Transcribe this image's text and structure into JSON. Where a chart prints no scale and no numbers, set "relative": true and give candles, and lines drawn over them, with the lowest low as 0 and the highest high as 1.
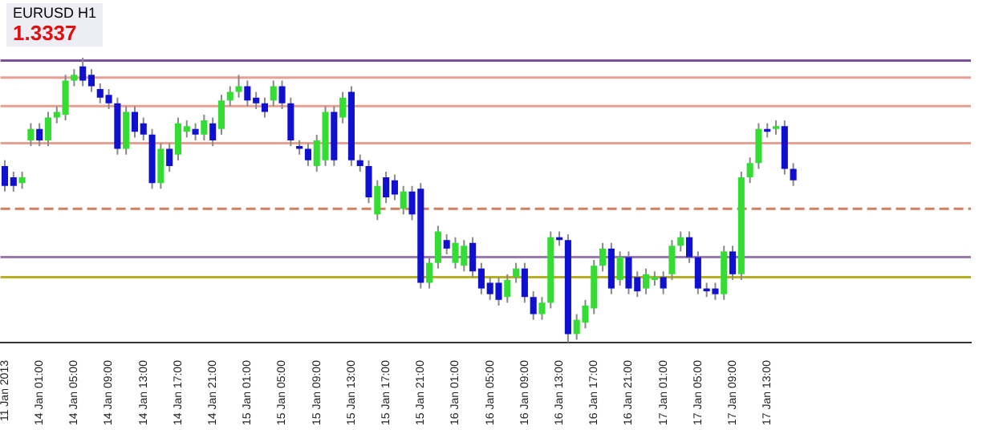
{
  "chart_data": {
    "type": "candlestick",
    "title": "EURUSD H1",
    "relative": true,
    "legend": false,
    "tick_labels": "x",
    "annotations": [
      "1.3337"
    ],
    "categories": [
      "11 Jan 2013",
      null,
      null,
      null,
      "14 Jan 01:00",
      null,
      null,
      null,
      "14 Jan 05:00",
      null,
      null,
      null,
      "14 Jan 09:00",
      null,
      null,
      null,
      "14 Jan 13:00",
      null,
      null,
      null,
      "14 Jan 17:00",
      null,
      null,
      null,
      "14 Jan 21:00",
      null,
      null,
      null,
      "15 Jan 01:00",
      null,
      null,
      null,
      "15 Jan 05:00",
      null,
      null,
      null,
      "15 Jan 09:00",
      null,
      null,
      null,
      "15 Jan 13:00",
      null,
      null,
      null,
      "15 Jan 17:00",
      null,
      null,
      null,
      "15 Jan 21:00",
      null,
      null,
      null,
      "16 Jan 01:00",
      null,
      null,
      null,
      "16 Jan 05:00",
      null,
      null,
      null,
      "16 Jan 09:00",
      null,
      null,
      null,
      "16 Jan 13:00",
      null,
      null,
      null,
      "16 Jan 17:00",
      null,
      null,
      null,
      "16 Jan 21:00",
      null,
      null,
      null,
      "17 Jan 01:00",
      null,
      null,
      null,
      "17 Jan 05:00",
      null,
      null,
      null,
      "17 Jan 09:00",
      null,
      null,
      null,
      "17 Jan 13:00",
      null,
      null,
      null,
      null,
      null,
      null,
      null,
      null,
      null,
      null,
      null,
      null,
      null,
      null,
      null,
      null,
      null,
      null,
      null,
      null,
      null,
      null,
      null
    ],
    "colors": [
      "#1010d0",
      "#1010d0",
      "#33dd33",
      "#33dd33",
      "#1010d0",
      "#33dd33",
      "#33dd33",
      "#33dd33",
      "#33dd33",
      "#1010d0",
      "#1010d0",
      "#1010d0",
      "#1010d0",
      "#1010d0",
      "#33dd33",
      "#1010d0",
      "#1010d0",
      "#1010d0",
      "#33dd33",
      "#1010d0",
      "#33dd33",
      "#33dd33",
      "#1010d0",
      "#33dd33",
      "#1010d0",
      "#33dd33",
      "#33dd33",
      "#33dd33",
      "#1010d0",
      "#1010d0",
      "#1010d0",
      "#33dd33",
      "#1010d0",
      "#1010d0",
      "#1010d0",
      "#1010d0",
      "#33dd33",
      "#33dd33",
      "#1010d0",
      "#33dd33",
      "#1010d0",
      "#1010d0",
      "#1010d0",
      "#33dd33",
      "#1010d0",
      "#1010d0",
      "#33dd33",
      "#1010d0",
      "#1010d0",
      "#33dd33",
      "#33dd33",
      "#1010d0",
      "#33dd33",
      "#33dd33",
      "#1010d0",
      "#1010d0",
      "#1010d0",
      "#1010d0",
      "#33dd33",
      "#33dd33",
      "#1010d0",
      "#1010d0",
      "#33dd33",
      "#33dd33",
      "#1010d0",
      "#1010d0",
      "#33dd33",
      "#33dd33",
      "#33dd33",
      "#33dd33",
      "#1010d0",
      "#33dd33",
      "#1010d0",
      "#1010d0",
      "#33dd33",
      "#33dd33",
      "#1010d0",
      "#33dd33",
      "#33dd33",
      "#1010d0",
      "#1010d0",
      "#1010d0",
      "#1010d0",
      "#33dd33",
      "#1010d0",
      "#33dd33",
      "#33dd33",
      "#33dd33",
      "#1010d0",
      "#33dd33",
      "#1010d0",
      "#1010d0",
      null,
      null,
      null,
      null,
      null,
      null,
      null,
      null,
      null,
      null,
      null,
      null,
      null,
      null,
      null,
      null,
      null,
      null,
      null,
      null
    ],
    "ohlc": [
      [
        0.62,
        0.64,
        0.53,
        0.55
      ],
      [
        0.58,
        0.6,
        0.53,
        0.55
      ],
      [
        0.56,
        0.6,
        0.54,
        0.58
      ],
      [
        0.71,
        0.77,
        0.69,
        0.75
      ],
      [
        0.75,
        0.77,
        0.69,
        0.71
      ],
      [
        0.71,
        0.81,
        0.69,
        0.79
      ],
      [
        0.79,
        0.83,
        0.77,
        0.81
      ],
      [
        0.8,
        0.94,
        0.78,
        0.92
      ],
      [
        0.92,
        0.96,
        0.9,
        0.94
      ],
      [
        0.97,
        1,
        0.9,
        0.92
      ],
      [
        0.94,
        0.96,
        0.88,
        0.9
      ],
      [
        0.89,
        0.91,
        0.84,
        0.86
      ],
      [
        0.87,
        0.89,
        0.82,
        0.84
      ],
      [
        0.84,
        0.86,
        0.66,
        0.68
      ],
      [
        0.68,
        0.83,
        0.66,
        0.81
      ],
      [
        0.81,
        0.83,
        0.72,
        0.74
      ],
      [
        0.77,
        0.79,
        0.71,
        0.73
      ],
      [
        0.73,
        0.75,
        0.54,
        0.56
      ],
      [
        0.56,
        0.7,
        0.54,
        0.68
      ],
      [
        0.68,
        0.7,
        0.6,
        0.62
      ],
      [
        0.66,
        0.79,
        0.64,
        0.77
      ],
      [
        0.74,
        0.78,
        0.72,
        0.76
      ],
      [
        0.75,
        0.77,
        0.71,
        0.73
      ],
      [
        0.73,
        0.8,
        0.71,
        0.78
      ],
      [
        0.77,
        0.79,
        0.69,
        0.71
      ],
      [
        0.75,
        0.87,
        0.73,
        0.85
      ],
      [
        0.85,
        0.9,
        0.83,
        0.88
      ],
      [
        0.88,
        0.94,
        0.86,
        0.9
      ],
      [
        0.9,
        0.92,
        0.83,
        0.85
      ],
      [
        0.86,
        0.88,
        0.82,
        0.84
      ],
      [
        0.84,
        0.86,
        0.79,
        0.81
      ],
      [
        0.85,
        0.92,
        0.83,
        0.9
      ],
      [
        0.9,
        0.92,
        0.82,
        0.84
      ],
      [
        0.84,
        0.86,
        0.69,
        0.71
      ],
      [
        0.69,
        0.71,
        0.66,
        0.68
      ],
      [
        0.68,
        0.7,
        0.62,
        0.64
      ],
      [
        0.62,
        0.73,
        0.6,
        0.71
      ],
      [
        0.64,
        0.83,
        0.62,
        0.81
      ],
      [
        0.81,
        0.83,
        0.62,
        0.64
      ],
      [
        0.79,
        0.88,
        0.77,
        0.86
      ],
      [
        0.88,
        0.9,
        0.62,
        0.64
      ],
      [
        0.64,
        0.66,
        0.6,
        0.62
      ],
      [
        0.62,
        0.64,
        0.49,
        0.51
      ],
      [
        0.45,
        0.57,
        0.43,
        0.55
      ],
      [
        0.58,
        0.6,
        0.49,
        0.51
      ],
      [
        0.57,
        0.59,
        0.5,
        0.52
      ],
      [
        0.47,
        0.55,
        0.45,
        0.53
      ],
      [
        0.53,
        0.55,
        0.43,
        0.45
      ],
      [
        0.54,
        0.56,
        0.19,
        0.21
      ],
      [
        0.21,
        0.3,
        0.19,
        0.28
      ],
      [
        0.28,
        0.41,
        0.26,
        0.39
      ],
      [
        0.36,
        0.38,
        0.31,
        0.33
      ],
      [
        0.28,
        0.37,
        0.26,
        0.35
      ],
      [
        0.27,
        0.36,
        0.25,
        0.34
      ],
      [
        0.35,
        0.37,
        0.23,
        0.25
      ],
      [
        0.26,
        0.28,
        0.17,
        0.19
      ],
      [
        0.21,
        0.23,
        0.15,
        0.17
      ],
      [
        0.21,
        0.23,
        0.13,
        0.15
      ],
      [
        0.16,
        0.24,
        0.14,
        0.22
      ],
      [
        0.23,
        0.28,
        0.21,
        0.26
      ],
      [
        0.26,
        0.28,
        0.14,
        0.16
      ],
      [
        0.16,
        0.18,
        0.08,
        0.1
      ],
      [
        0.1,
        0.16,
        0.08,
        0.14
      ],
      [
        0.14,
        0.39,
        0.12,
        0.37
      ],
      [
        0.37,
        0.39,
        0.34,
        0.36
      ],
      [
        0.36,
        0.38,
        0,
        0.03
      ],
      [
        0.03,
        0.1,
        0.01,
        0.08
      ],
      [
        0.07,
        0.15,
        0.05,
        0.13
      ],
      [
        0.12,
        0.29,
        0.1,
        0.27
      ],
      [
        0.27,
        0.35,
        0.25,
        0.33
      ],
      [
        0.33,
        0.35,
        0.17,
        0.19
      ],
      [
        0.22,
        0.32,
        0.2,
        0.3
      ],
      [
        0.3,
        0.32,
        0.17,
        0.19
      ],
      [
        0.23,
        0.25,
        0.16,
        0.18
      ],
      [
        0.19,
        0.26,
        0.17,
        0.24
      ],
      [
        0.22,
        0.25,
        0.2,
        0.23
      ],
      [
        0.23,
        0.25,
        0.17,
        0.19
      ],
      [
        0.24,
        0.36,
        0.22,
        0.34
      ],
      [
        0.34,
        0.39,
        0.32,
        0.37
      ],
      [
        0.37,
        0.39,
        0.28,
        0.3
      ],
      [
        0.3,
        0.32,
        0.17,
        0.19
      ],
      [
        0.19,
        0.21,
        0.16,
        0.18
      ],
      [
        0.19,
        0.21,
        0.15,
        0.17
      ],
      [
        0.17,
        0.34,
        0.15,
        0.32
      ],
      [
        0.32,
        0.34,
        0.22,
        0.24
      ],
      [
        0.24,
        0.6,
        0.22,
        0.58
      ],
      [
        0.58,
        0.65,
        0.56,
        0.63
      ],
      [
        0.63,
        0.77,
        0.61,
        0.75
      ],
      [
        0.75,
        0.77,
        0.72,
        0.74
      ],
      [
        0.75,
        0.78,
        0.73,
        0.76
      ],
      [
        0.76,
        0.78,
        0.59,
        0.61
      ],
      [
        0.61,
        0.63,
        0.55,
        0.57
      ],
      null,
      null,
      null,
      null,
      null,
      null,
      null,
      null,
      null,
      null,
      null,
      null,
      null,
      null,
      null,
      null,
      null,
      null,
      null,
      null
    ],
    "ref_lines": [
      {
        "axis": "y",
        "value": 0.99,
        "color": "#7a4fa0",
        "line_style": "solid"
      },
      {
        "axis": "y",
        "value": 0.93,
        "color": "#e8a090",
        "line_style": "solid"
      },
      {
        "axis": "y",
        "value": 0.83,
        "color": "#e8a090",
        "line_style": "solid"
      },
      {
        "axis": "y",
        "value": 0.7,
        "color": "#e8a090",
        "line_style": "solid"
      },
      {
        "axis": "y",
        "value": 0.47,
        "color": "#d08060",
        "line_style": "dashed"
      },
      {
        "axis": "y",
        "value": 0.3,
        "color": "#9a7ab0",
        "line_style": "solid"
      },
      {
        "axis": "y",
        "value": 0.23,
        "color": "#b8b020",
        "line_style": "solid"
      }
    ]
  }
}
